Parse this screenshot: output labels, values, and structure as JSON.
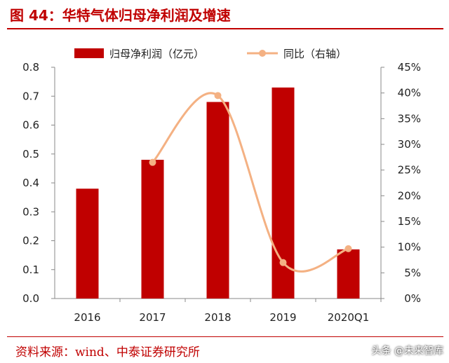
{
  "figure_title": "图 44：华特气体归母净利润及增速",
  "source_note": "资料来源：wind、中泰证券研究所",
  "watermark": "头条 @未来智库",
  "colors": {
    "bar": "#c00000",
    "line": "#f4b183",
    "title": "#c00000"
  },
  "chart_data": {
    "type": "bar",
    "categories": [
      "2016",
      "2017",
      "2018",
      "2019",
      "2020Q1"
    ],
    "series": [
      {
        "name": "归母净利润（亿元）",
        "type": "bar",
        "axis": "left",
        "values": [
          0.38,
          0.48,
          0.68,
          0.73,
          0.17
        ]
      },
      {
        "name": "同比（右轴）",
        "type": "line",
        "axis": "right",
        "smooth": true,
        "values": [
          null,
          0.265,
          0.395,
          0.07,
          0.097
        ]
      }
    ],
    "y_left": {
      "min": 0,
      "max": 0.8,
      "ticks": [
        "0.0",
        "0.1",
        "0.2",
        "0.3",
        "0.4",
        "0.5",
        "0.6",
        "0.7",
        "0.8"
      ]
    },
    "y_right": {
      "min": 0,
      "max": 0.45,
      "ticks": [
        "0%",
        "5%",
        "10%",
        "15%",
        "20%",
        "25%",
        "30%",
        "35%",
        "40%",
        "45%"
      ]
    },
    "legend_position": "top",
    "grid": false
  }
}
